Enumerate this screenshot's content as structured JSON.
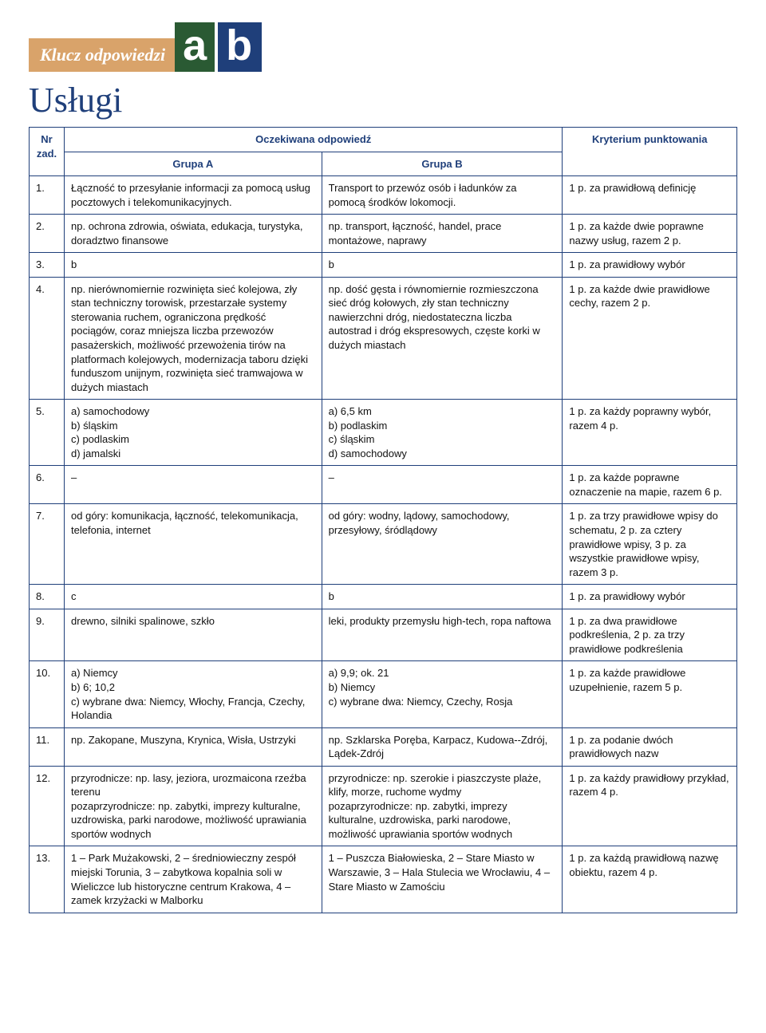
{
  "logo": {
    "klucz": "Klucz odpowiedzi",
    "a": "a",
    "b": "b"
  },
  "title": "Usługi",
  "header": {
    "nr_line1": "Nr",
    "nr_line2": "zad.",
    "mid": "Oczekiwana odpowiedź",
    "ga": "Grupa A",
    "gb": "Grupa B",
    "kryt": "Kryterium punktowania"
  },
  "rows": [
    {
      "nr": "1.",
      "a": "Łączność to przesyłanie informacji za pomocą usług pocztowych i telekomunikacyjnych.",
      "b": "Transport to przewóz osób i ładunków za pomocą środków lokomocji.",
      "k": "1 p. za prawidłową definicję"
    },
    {
      "nr": "2.",
      "a": "np. ochrona zdrowia, oświata, edukacja, turystyka, doradztwo finansowe",
      "b": "np. transport, łączność, handel, prace montażowe, naprawy",
      "k": "1 p. za każde dwie poprawne nazwy usług, razem 2 p."
    },
    {
      "nr": "3.",
      "a": "b",
      "b": "b",
      "k": "1 p. za prawidłowy wybór"
    },
    {
      "nr": "4.",
      "a": "np. nierównomiernie rozwinięta sieć kolejowa, zły stan techniczny torowisk, przestarzałe systemy sterowania ruchem, ograniczona prędkość pociągów, coraz mniejsza liczba przewozów pasażerskich, możliwość przewożenia tirów na platformach kolejowych, modernizacja taboru dzięki funduszom unijnym, rozwinięta sieć tramwajowa w dużych miastach",
      "b": "np. dość gęsta i równomiernie rozmieszczona sieć dróg kołowych, zły stan techniczny nawierzchni dróg, niedostateczna liczba autostrad i dróg ekspresowych, częste korki w dużych miastach",
      "k": "1 p. za każde dwie prawidłowe cechy, razem 2 p."
    },
    {
      "nr": "5.",
      "a": "a) samochodowy\nb) śląskim\nc) podlaskim\nd) jamalski",
      "b": "a) 6,5 km\nb) podlaskim\nc) śląskim\nd) samochodowy",
      "k": "1 p. za każdy poprawny wybór, razem 4 p."
    },
    {
      "nr": "6.",
      "a": "–",
      "b": "–",
      "k": "1 p. za każde poprawne oznaczenie na mapie, razem 6 p."
    },
    {
      "nr": "7.",
      "a": "od góry: komunikacja, łączność, telekomunikacja, telefonia, internet",
      "b": "od góry: wodny, lądowy, samochodowy, przesyłowy, śródlądowy",
      "k": "1 p. za trzy prawidłowe wpisy do schematu, 2 p. za cztery prawidłowe wpisy, 3 p. za wszystkie prawidłowe wpisy, razem 3 p."
    },
    {
      "nr": "8.",
      "a": "c",
      "b": "b",
      "k": "1 p. za prawidłowy wybór"
    },
    {
      "nr": "9.",
      "a": "drewno, silniki spalinowe, szkło",
      "b": "leki, produkty przemysłu high-tech, ropa naftowa",
      "k": "1 p. za dwa prawidłowe podkreślenia, 2 p. za trzy prawidłowe podkreślenia"
    },
    {
      "nr": "10.",
      "a": "a) Niemcy\nb) 6; 10,2\nc) wybrane dwa: Niemcy, Włochy, Francja, Czechy, Holandia",
      "b": "a) 9,9; ok. 21\nb) Niemcy\nc) wybrane dwa: Niemcy, Czechy, Rosja",
      "k": "1 p. za każde prawidłowe uzupełnienie, razem 5 p."
    },
    {
      "nr": "11.",
      "a": "np. Zakopane, Muszyna, Krynica, Wisła, Ustrzyki",
      "b": "np. Szklarska Poręba, Karpacz, Kudowa-­-Zdrój, Lądek-Zdrój",
      "k": "1 p. za podanie dwóch prawidłowych nazw"
    },
    {
      "nr": "12.",
      "a": "przyrodnicze: np. lasy, jeziora, urozmaicona rzeźba terenu\npozaprzyrodnicze: np. zabytki, imprezy kulturalne, uzdrowiska, parki narodowe, możliwość uprawiania sportów wodnych",
      "b": "przyrodnicze: np. szerokie i piaszczyste plaże, klify, morze, ruchome wydmy\npozaprzyrodnicze: np. zabytki, imprezy kulturalne, uzdrowiska, parki narodowe, możliwość uprawiania sportów wodnych",
      "k": "1 p. za każdy prawidłowy przykład, razem 4 p."
    },
    {
      "nr": "13.",
      "a": "1 – Park Mużakowski, 2 – średniowieczny zespół miejski Torunia, 3 – zabytkowa kopalnia soli w Wieliczce lub historyczne centrum Krakowa, 4 – zamek krzyżacki w Malborku",
      "b": "1 – Puszcza Białowieska, 2 – Stare Miasto w Warszawie, 3 – Hala Stulecia we Wrocławiu, 4 – Stare Miasto w Zamościu",
      "k": "1 p. za każdą prawidłową nazwę obiektu, razem 4 p."
    }
  ]
}
